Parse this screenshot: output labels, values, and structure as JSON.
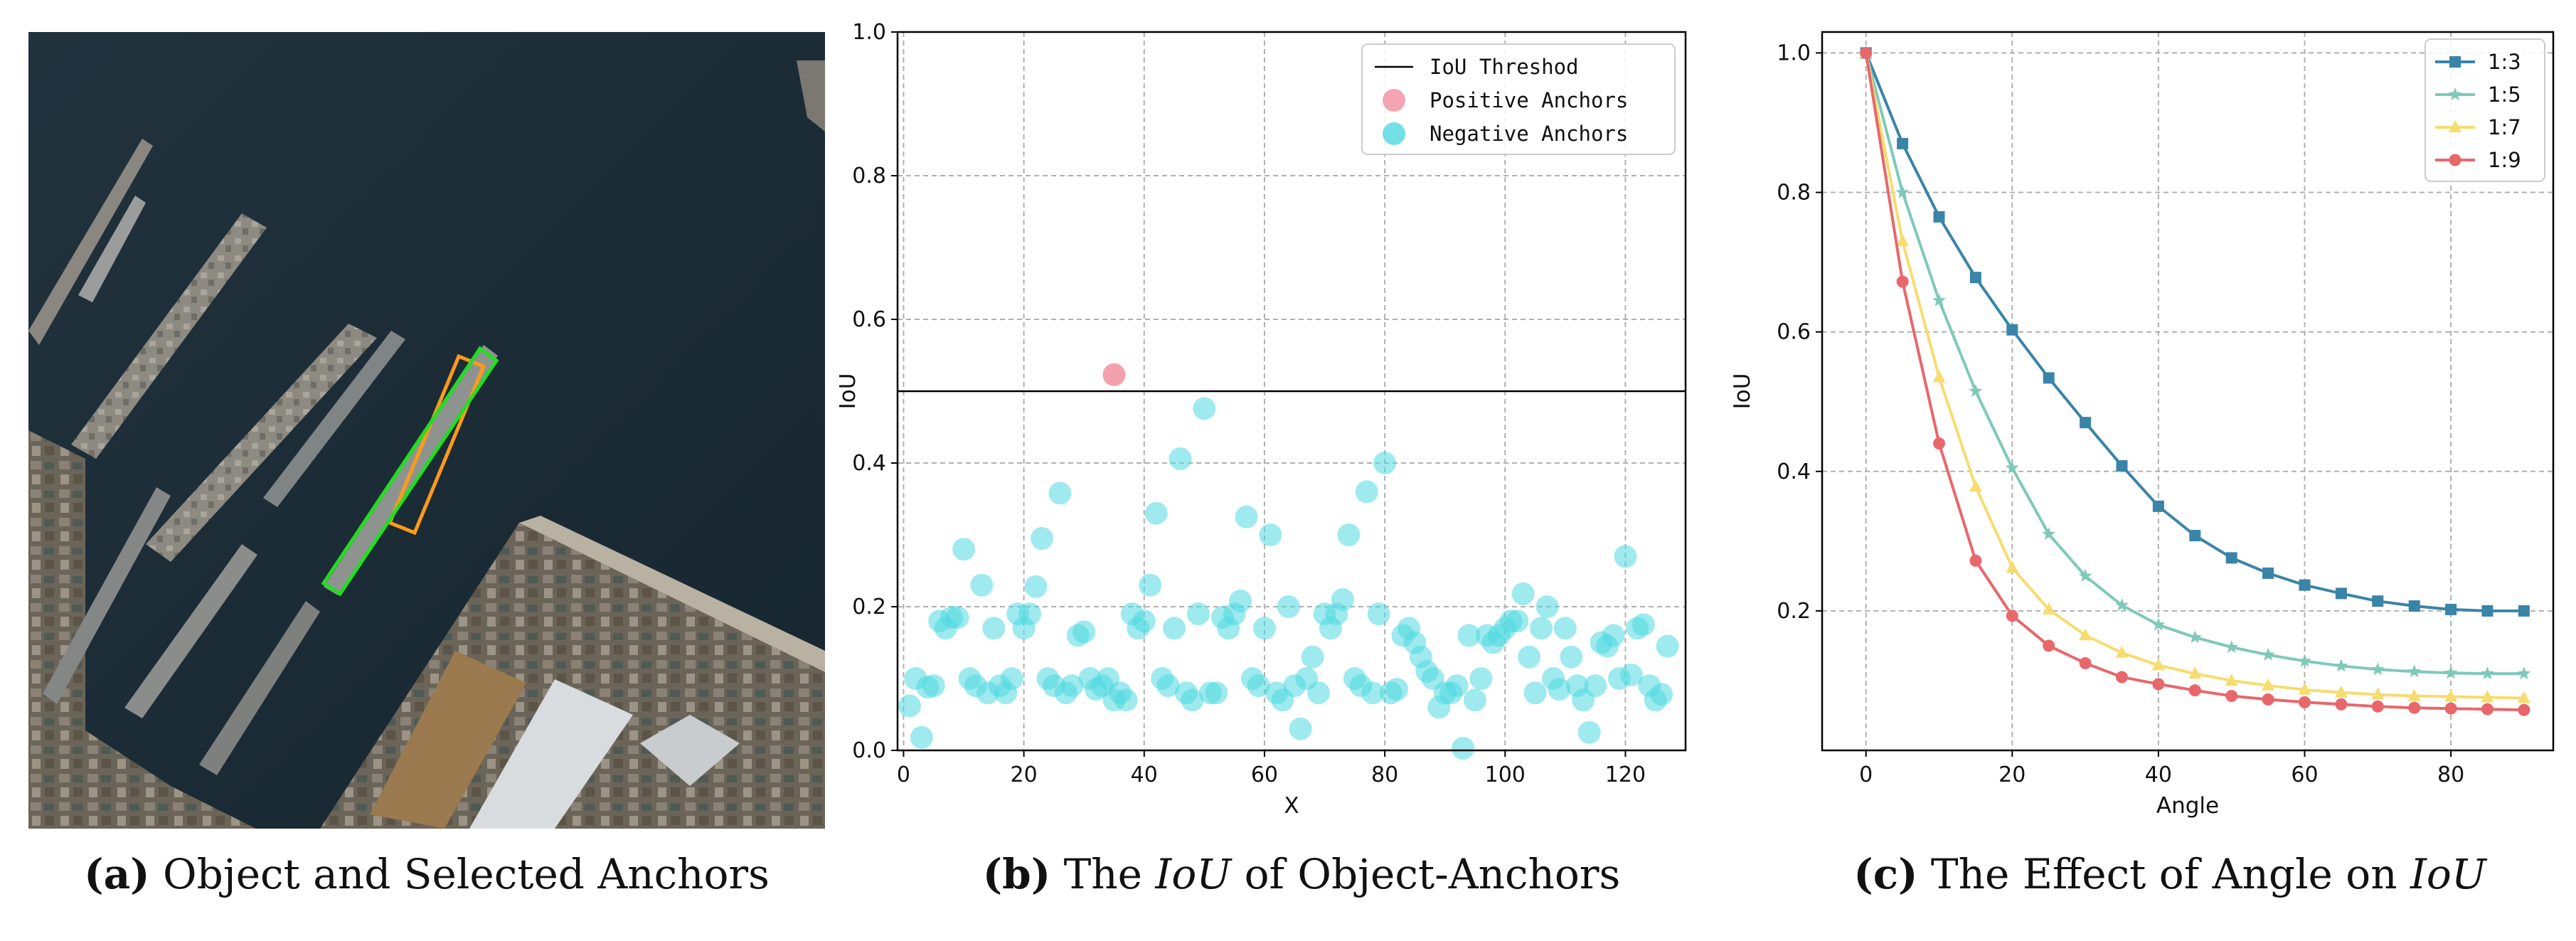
{
  "captions": {
    "a": {
      "letter": "(a)",
      "text": "Object and Selected Anchors"
    },
    "b": {
      "letter": "(b)",
      "pre": "The",
      "italic": "IoU",
      "post": "of Object-Anchors"
    },
    "c": {
      "letter": "(c)",
      "pre": "The Effect of Angle on",
      "italic": "IoU"
    }
  },
  "photo": {
    "water_color": "#1d2e38",
    "object_box_color": "#22dd22",
    "anchor_box_color": "#ff9a1a"
  },
  "chart_data": [
    {
      "type": "scatter",
      "xlabel": "X",
      "ylabel": "IoU",
      "xlim": [
        -1,
        130
      ],
      "ylim": [
        0,
        1.0
      ],
      "xticks": [
        0,
        20,
        40,
        60,
        80,
        100,
        120
      ],
      "yticks": [
        0.0,
        0.2,
        0.4,
        0.6,
        0.8,
        1.0
      ],
      "grid": true,
      "legend": {
        "placement": "top-right",
        "entries": [
          {
            "label": "IoU Threshod",
            "kind": "line",
            "color": "#000000"
          },
          {
            "label": "Positive Anchors",
            "kind": "marker",
            "color": "#f0909f"
          },
          {
            "label": "Negative Anchors",
            "kind": "marker",
            "color": "#4fd8e0"
          }
        ]
      },
      "threshold": 0.5,
      "positive": [
        {
          "x": 35,
          "y": 0.523
        }
      ],
      "negative": [
        [
          1,
          0.062
        ],
        [
          2,
          0.1
        ],
        [
          3,
          0.018
        ],
        [
          4,
          0.088
        ],
        [
          5,
          0.09
        ],
        [
          6,
          0.18
        ],
        [
          7,
          0.17
        ],
        [
          8,
          0.185
        ],
        [
          9,
          0.185
        ],
        [
          10,
          0.28
        ],
        [
          11,
          0.1
        ],
        [
          12,
          0.09
        ],
        [
          13,
          0.23
        ],
        [
          14,
          0.08
        ],
        [
          15,
          0.17
        ],
        [
          16,
          0.09
        ],
        [
          17,
          0.08
        ],
        [
          18,
          0.1
        ],
        [
          19,
          0.19
        ],
        [
          20,
          0.17
        ],
        [
          21,
          0.19
        ],
        [
          22,
          0.228
        ],
        [
          23,
          0.295
        ],
        [
          24,
          0.1
        ],
        [
          25,
          0.09
        ],
        [
          26,
          0.358
        ],
        [
          27,
          0.08
        ],
        [
          28,
          0.09
        ],
        [
          29,
          0.16
        ],
        [
          30,
          0.165
        ],
        [
          31,
          0.1
        ],
        [
          32,
          0.085
        ],
        [
          33,
          0.09
        ],
        [
          34,
          0.1
        ],
        [
          35,
          0.07
        ],
        [
          36,
          0.08
        ],
        [
          37,
          0.07
        ],
        [
          38,
          0.19
        ],
        [
          39,
          0.17
        ],
        [
          40,
          0.18
        ],
        [
          41,
          0.23
        ],
        [
          42,
          0.33
        ],
        [
          43,
          0.1
        ],
        [
          44,
          0.09
        ],
        [
          45,
          0.17
        ],
        [
          46,
          0.406
        ],
        [
          47,
          0.08
        ],
        [
          48,
          0.07
        ],
        [
          49,
          0.19
        ],
        [
          50,
          0.476
        ],
        [
          51,
          0.08
        ],
        [
          52,
          0.08
        ],
        [
          53,
          0.185
        ],
        [
          54,
          0.17
        ],
        [
          55,
          0.19
        ],
        [
          56,
          0.208
        ],
        [
          57,
          0.325
        ],
        [
          58,
          0.1
        ],
        [
          59,
          0.09
        ],
        [
          60,
          0.17
        ],
        [
          61,
          0.3
        ],
        [
          62,
          0.08
        ],
        [
          63,
          0.07
        ],
        [
          64,
          0.2
        ],
        [
          65,
          0.09
        ],
        [
          66,
          0.03
        ],
        [
          67,
          0.1
        ],
        [
          68,
          0.13
        ],
        [
          69,
          0.08
        ],
        [
          70,
          0.19
        ],
        [
          71,
          0.17
        ],
        [
          72,
          0.19
        ],
        [
          73,
          0.21
        ],
        [
          74,
          0.3
        ],
        [
          75,
          0.1
        ],
        [
          76,
          0.09
        ],
        [
          77,
          0.36
        ],
        [
          78,
          0.08
        ],
        [
          79,
          0.19
        ],
        [
          80,
          0.4
        ],
        [
          81,
          0.08
        ],
        [
          82,
          0.085
        ],
        [
          83,
          0.16
        ],
        [
          84,
          0.17
        ],
        [
          85,
          0.15
        ],
        [
          86,
          0.13
        ],
        [
          87,
          0.11
        ],
        [
          88,
          0.1
        ],
        [
          89,
          0.06
        ],
        [
          90,
          0.08
        ],
        [
          91,
          0.08
        ],
        [
          92,
          0.09
        ],
        [
          93,
          0.003
        ],
        [
          94,
          0.16
        ],
        [
          95,
          0.07
        ],
        [
          96,
          0.1
        ],
        [
          97,
          0.16
        ],
        [
          98,
          0.15
        ],
        [
          99,
          0.16
        ],
        [
          100,
          0.17
        ],
        [
          101,
          0.18
        ],
        [
          102,
          0.18
        ],
        [
          103,
          0.218
        ],
        [
          104,
          0.13
        ],
        [
          105,
          0.08
        ],
        [
          106,
          0.17
        ],
        [
          107,
          0.2
        ],
        [
          108,
          0.1
        ],
        [
          109,
          0.085
        ],
        [
          110,
          0.17
        ],
        [
          111,
          0.13
        ],
        [
          112,
          0.09
        ],
        [
          113,
          0.07
        ],
        [
          114,
          0.025
        ],
        [
          115,
          0.09
        ],
        [
          116,
          0.15
        ],
        [
          117,
          0.145
        ],
        [
          118,
          0.16
        ],
        [
          119,
          0.1
        ],
        [
          120,
          0.27
        ],
        [
          121,
          0.105
        ],
        [
          122,
          0.17
        ],
        [
          123,
          0.175
        ],
        [
          124,
          0.09
        ],
        [
          125,
          0.07
        ],
        [
          126,
          0.078
        ],
        [
          127,
          0.145
        ]
      ]
    },
    {
      "type": "line",
      "xlabel": "Angle",
      "ylabel": "IoU",
      "xlim": [
        -6,
        94
      ],
      "ylim": [
        0.0,
        1.03
      ],
      "xticks": [
        0,
        20,
        40,
        60,
        80
      ],
      "yticks": [
        0.2,
        0.4,
        0.6,
        0.8,
        1.0
      ],
      "grid": true,
      "legend": {
        "placement": "top-right"
      },
      "x": [
        0,
        5,
        10,
        15,
        20,
        25,
        30,
        35,
        40,
        45,
        50,
        55,
        60,
        65,
        70,
        75,
        80,
        85,
        90
      ],
      "series": [
        {
          "name": "1:3",
          "color": "#3a84a8",
          "marker": "square",
          "values": [
            1.0,
            0.87,
            0.765,
            0.678,
            0.603,
            0.534,
            0.47,
            0.408,
            0.35,
            0.308,
            0.276,
            0.254,
            0.237,
            0.225,
            0.214,
            0.207,
            0.202,
            0.2,
            0.2
          ]
        },
        {
          "name": "1:5",
          "color": "#7fc9b8",
          "marker": "star",
          "values": [
            1.0,
            0.8,
            0.645,
            0.515,
            0.405,
            0.31,
            0.25,
            0.208,
            0.18,
            0.162,
            0.148,
            0.137,
            0.128,
            0.121,
            0.116,
            0.113,
            0.111,
            0.11,
            0.11
          ]
        },
        {
          "name": "1:7",
          "color": "#f7dc6f",
          "marker": "triangle",
          "values": [
            1.0,
            0.73,
            0.535,
            0.378,
            0.262,
            0.202,
            0.165,
            0.14,
            0.122,
            0.11,
            0.1,
            0.093,
            0.087,
            0.083,
            0.08,
            0.078,
            0.077,
            0.076,
            0.075
          ]
        },
        {
          "name": "1:9",
          "color": "#e8676b",
          "marker": "circle",
          "values": [
            1.0,
            0.672,
            0.44,
            0.272,
            0.193,
            0.15,
            0.125,
            0.105,
            0.095,
            0.086,
            0.078,
            0.073,
            0.069,
            0.066,
            0.063,
            0.061,
            0.06,
            0.059,
            0.058
          ]
        }
      ]
    }
  ]
}
